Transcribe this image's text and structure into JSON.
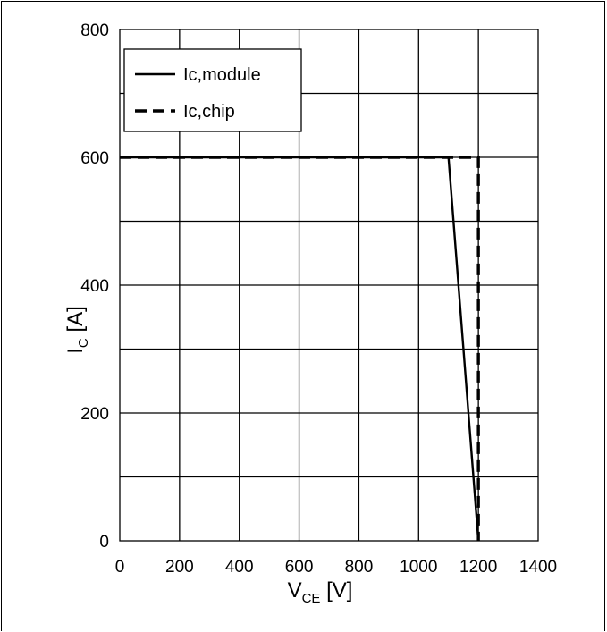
{
  "chart_data": {
    "type": "line",
    "title": "",
    "xlabel": {
      "main": "V",
      "sub": "CE",
      "unit": " [V]"
    },
    "ylabel": {
      "main": "I",
      "sub": "C",
      "unit": " [A]"
    },
    "xlim": [
      0,
      1400
    ],
    "ylim": [
      0,
      800
    ],
    "x_ticks": [
      0,
      200,
      400,
      600,
      800,
      1000,
      1200,
      1400
    ],
    "y_ticks": [
      0,
      200,
      400,
      600,
      800
    ],
    "x_tick_labels": [
      "0",
      "200",
      "400",
      "600",
      "800",
      "1000",
      "1200",
      "1400"
    ],
    "y_tick_labels": [
      "0",
      "200",
      "400",
      "600",
      "800"
    ],
    "grid": {
      "x_step": 200,
      "y_step": 100,
      "on": true
    },
    "legend_position": "top-left",
    "series": [
      {
        "name": "Ic,module",
        "style": "solid",
        "color": "#000000",
        "x": [
          0,
          1100,
          1200
        ],
        "y": [
          600,
          600,
          0
        ]
      },
      {
        "name": "Ic,chip",
        "style": "dashed",
        "color": "#000000",
        "x": [
          0,
          1200,
          1200
        ],
        "y": [
          600,
          600,
          0
        ]
      }
    ]
  }
}
